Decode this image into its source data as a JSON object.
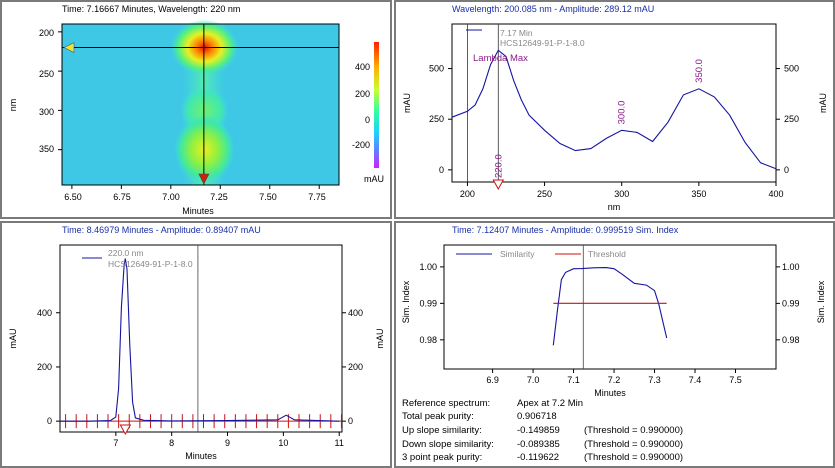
{
  "colors": {
    "series_blue": "#1414a0",
    "marker_red": "#cc1010",
    "title_blue": "#1a2ea8",
    "peak_label_purple": "#8a1a8a",
    "pane_border": "#7a7a7a"
  },
  "contour_panel": {
    "title": "Time: 7.16667 Minutes, Wavelength: 220 nm",
    "xlabel": "Minutes",
    "ylabel": "nm",
    "x_ticks": [
      "6.50",
      "6.75",
      "7.00",
      "7.25",
      "7.50",
      "7.75"
    ],
    "y_ticks": [
      "200",
      "250",
      "300",
      "350"
    ],
    "colorbar_ticks": [
      "400",
      "200",
      "0",
      "-200"
    ],
    "colorbar_unit": "mAU"
  },
  "spectrum_panel": {
    "title": "Wavelength: 200.085 nm - Amplitude: 289.12 mAU",
    "legend_time": "7.17 Min",
    "legend_sample": "HCS12649-91-P-1-8.0",
    "lambda_max_label": "Lambda Max"
  },
  "chromatogram_panel": {
    "title": "Time: 8.46979 Minutes - Amplitude: 0.89407 mAU",
    "legend_wavelength": "220.0 nm",
    "legend_sample": "HCS12649-91-P-1-8.0"
  },
  "similarity_panel": {
    "title": "Time: 7.12407 Minutes - Amplitude: 0.999519 Sim. Index",
    "legend_similarity": "Similarity",
    "legend_threshold": "Threshold"
  },
  "purity_results": [
    {
      "label": "Reference spectrum:",
      "value": "Apex at 7.2 Min",
      "threshold": ""
    },
    {
      "label": "Total peak purity:",
      "value": "0.906718",
      "threshold": ""
    },
    {
      "label": "Up slope similarity:",
      "value": "-0.149859",
      "threshold": "(Threshold = 0.990000)"
    },
    {
      "label": "Down slope similarity:",
      "value": "-0.089385",
      "threshold": "(Threshold = 0.990000)"
    },
    {
      "label": "3 point peak purity:",
      "value": "-0.119622",
      "threshold": "(Threshold = 0.990000)"
    }
  ],
  "chart_data": [
    {
      "type": "heatmap",
      "title": "Time: 7.16667 Minutes, Wavelength: 220 nm",
      "xlabel": "Minutes",
      "ylabel": "nm",
      "xlim": [
        6.45,
        7.85
      ],
      "ylim": [
        190,
        395
      ],
      "x_ticks": [
        6.5,
        6.75,
        7.0,
        7.25,
        7.5,
        7.75
      ],
      "y_ticks": [
        200,
        250,
        300,
        350
      ],
      "colorbar": {
        "unit": "mAU",
        "range": [
          -300,
          520
        ],
        "ticks": [
          400,
          200,
          0,
          -200
        ]
      },
      "cursor": {
        "time_min": 7.167,
        "wavelength_nm": 220
      },
      "intensity_spots": [
        {
          "time_min": 7.17,
          "wavelength_nm": 220,
          "level": "high"
        },
        {
          "time_min": 7.17,
          "wavelength_nm": 300,
          "level": "low"
        },
        {
          "time_min": 7.17,
          "wavelength_nm": 350,
          "level": "medium"
        }
      ]
    },
    {
      "type": "line",
      "title": "Wavelength: 200.085 nm - Amplitude: 289.12 mAU",
      "xlabel": "nm",
      "ylabel": "mAU",
      "xlim": [
        190,
        400
      ],
      "ylim": [
        -60,
        720
      ],
      "x_ticks": [
        200,
        250,
        300,
        350,
        400
      ],
      "y_ticks": [
        0,
        250,
        500
      ],
      "cursor_x": 200.085,
      "apex_line_x": 220,
      "series": [
        {
          "name": "7.17 Min HCS12649-91-P-1-8.0",
          "x": [
            190,
            200,
            205,
            210,
            215,
            220,
            225,
            230,
            235,
            240,
            250,
            260,
            270,
            280,
            290,
            300,
            310,
            320,
            330,
            340,
            350,
            360,
            370,
            380,
            390,
            400
          ],
          "y": [
            260,
            289,
            320,
            400,
            520,
            590,
            560,
            440,
            345,
            270,
            195,
            130,
            95,
            105,
            155,
            195,
            185,
            140,
            235,
            370,
            400,
            360,
            270,
            135,
            35,
            5
          ]
        }
      ],
      "peak_labels": [
        {
          "x": 220,
          "label": "220.0"
        },
        {
          "x": 300,
          "label": "300.0"
        },
        {
          "x": 350,
          "label": "350.0"
        }
      ]
    },
    {
      "type": "line",
      "title": "Time: 8.46979 Minutes - Amplitude: 0.89407 mAU",
      "xlabel": "Minutes",
      "ylabel": "mAU",
      "xlim": [
        6.0,
        11.05
      ],
      "ylim": [
        -40,
        650
      ],
      "x_ticks": [
        7,
        8,
        9,
        10,
        11
      ],
      "y_ticks": [
        0,
        200,
        400
      ],
      "cursor_x": 8.46979,
      "peak_apex_x": 7.17,
      "series": [
        {
          "name": "220.0 nm HCS12649-91-P-1-8.0",
          "x": [
            6.0,
            6.5,
            6.9,
            7.0,
            7.05,
            7.1,
            7.15,
            7.17,
            7.2,
            7.25,
            7.3,
            7.35,
            7.5,
            8.0,
            9.0,
            9.9,
            10.05,
            10.2,
            11.0
          ],
          "y": [
            0,
            0,
            2,
            15,
            120,
            420,
            580,
            600,
            560,
            280,
            70,
            12,
            3,
            1,
            2,
            5,
            22,
            5,
            0
          ]
        }
      ]
    },
    {
      "type": "line",
      "title": "Time: 7.12407 Minutes - Amplitude: 0.999519 Sim. Index",
      "xlabel": "Minutes",
      "ylabel": "Sim. Index",
      "xlim": [
        6.78,
        7.6
      ],
      "ylim": [
        0.972,
        1.006
      ],
      "x_ticks": [
        6.9,
        7.0,
        7.1,
        7.2,
        7.3,
        7.4,
        7.5
      ],
      "y_ticks": [
        0.98,
        0.99,
        1.0
      ],
      "cursor_x": 7.124,
      "series": [
        {
          "name": "Similarity",
          "x": [
            7.05,
            7.06,
            7.07,
            7.08,
            7.1,
            7.12,
            7.15,
            7.18,
            7.2,
            7.22,
            7.25,
            7.28,
            7.3,
            7.31,
            7.33
          ],
          "y": [
            0.9785,
            0.988,
            0.9965,
            0.9985,
            0.9995,
            0.99952,
            0.99975,
            0.9998,
            0.9995,
            0.998,
            0.9955,
            0.995,
            0.9935,
            0.99,
            0.9805
          ]
        },
        {
          "name": "Threshold",
          "x": [
            7.05,
            7.33
          ],
          "y": [
            0.99,
            0.99
          ]
        }
      ]
    }
  ]
}
